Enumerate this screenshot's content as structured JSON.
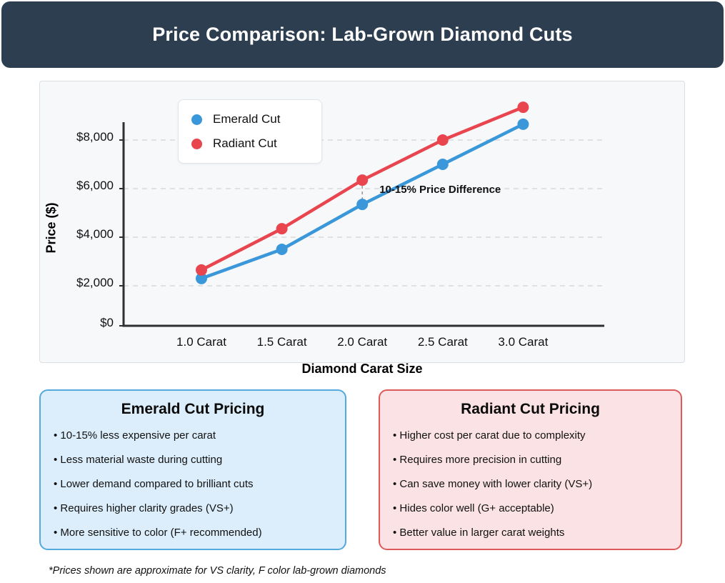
{
  "header": {
    "title": "Price Comparison: Lab-Grown Diamond Cuts"
  },
  "chart_data": {
    "type": "line",
    "categories": [
      "1.0 Carat",
      "1.5 Carat",
      "2.0 Carat",
      "2.5 Carat",
      "3.0 Carat"
    ],
    "series": [
      {
        "name": "Emerald Cut",
        "color": "#3a97d9",
        "values": [
          2300,
          3500,
          5350,
          7000,
          8650
        ]
      },
      {
        "name": "Radiant Cut",
        "color": "#e8454f",
        "values": [
          2650,
          4350,
          6350,
          8000,
          9350
        ]
      }
    ],
    "title": "",
    "xlabel": "Diamond Carat Size",
    "ylabel": "Price ($)",
    "yticks": [
      0,
      2000,
      4000,
      6000,
      8000
    ],
    "ytick_labels": [
      "$0",
      "$2,000",
      "$4,000",
      "$6,000",
      "$8,000"
    ],
    "ylim": [
      0,
      8700
    ],
    "grid": "horizontal dashed",
    "legend_position": "inset top-left",
    "annotation": {
      "text": "10-15% Price Difference",
      "x_category": "2.0 Carat",
      "connector": "vertical dashed between series points"
    }
  },
  "info_boxes": [
    {
      "title": "Emerald Cut Pricing",
      "accent_color": "#54a9dd",
      "background_color": "#dceefb",
      "bullets": [
        "10-15% less expensive per carat",
        "Less material waste during cutting",
        "Lower demand compared to brilliant cuts",
        "Requires higher clarity grades (VS+)",
        "More sensitive to color (F+ recommended)"
      ]
    },
    {
      "title": "Radiant Cut Pricing",
      "accent_color": "#dc5a5a",
      "background_color": "#fbe3e5",
      "bullets": [
        "Higher cost per carat due to complexity",
        "Requires more precision in cutting",
        "Can save money with lower clarity (VS+)",
        "Hides color well (G+ acceptable)",
        "Better value in larger carat weights"
      ]
    }
  ],
  "footnote": "*Prices shown are approximate for VS clarity, F color lab-grown diamonds",
  "colors": {
    "header_background": "#2d3e50",
    "panel_background": "#f7f8fa",
    "axis": "#2f2f2f",
    "gridline": "#d9d9d9",
    "emerald_series": "#3a97d9",
    "radiant_series": "#e8454f"
  }
}
